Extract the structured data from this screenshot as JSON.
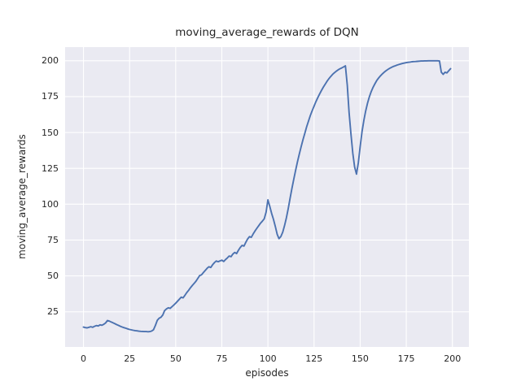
{
  "chart_data": {
    "type": "line",
    "title": "moving_average_rewards of DQN",
    "xlabel": "episodes",
    "ylabel": "moving_average_rewards",
    "xlim": [
      -9.95,
      208.95
    ],
    "ylim": [
      0.5,
      209.5
    ],
    "xticks": [
      0,
      25,
      50,
      75,
      100,
      125,
      150,
      175,
      200
    ],
    "yticks": [
      25,
      50,
      75,
      100,
      125,
      150,
      175,
      200
    ],
    "grid": true,
    "legend_position": "none",
    "style": {
      "line_color": "#4c72b0",
      "plot_bg": "#eaeaf2",
      "grid_color": "#ffffff",
      "text_color": "#262626",
      "fig_bg": "#ffffff"
    },
    "series": [
      {
        "name": "moving_average_rewards",
        "x_start": 0,
        "x_step": 1,
        "y": [
          14.3,
          14.0,
          13.8,
          14.2,
          14.6,
          14.2,
          14.9,
          15.4,
          15.1,
          15.9,
          15.6,
          16.3,
          17.2,
          18.9,
          18.5,
          17.9,
          17.3,
          16.7,
          16.1,
          15.5,
          14.9,
          14.4,
          13.9,
          13.5,
          13.1,
          12.7,
          12.4,
          12.1,
          11.9,
          11.7,
          11.5,
          11.4,
          11.3,
          11.2,
          11.2,
          11.1,
          11.2,
          11.6,
          12.5,
          15.5,
          19.0,
          20.5,
          21.2,
          22.8,
          25.8,
          27.0,
          27.8,
          27.4,
          28.6,
          29.8,
          31.0,
          32.4,
          33.8,
          35.2,
          34.7,
          36.5,
          38.4,
          40.0,
          41.8,
          43.3,
          44.8,
          46.4,
          48.3,
          50.3,
          50.8,
          52.3,
          53.8,
          55.3,
          56.4,
          55.9,
          57.8,
          59.3,
          60.4,
          59.9,
          60.5,
          61.0,
          60.1,
          61.4,
          62.6,
          63.9,
          63.4,
          65.3,
          66.4,
          65.6,
          67.9,
          69.8,
          71.3,
          70.8,
          73.4,
          75.8,
          77.4,
          76.9,
          79.3,
          81.4,
          83.2,
          85.0,
          86.8,
          88.2,
          89.8,
          94.5,
          103.0,
          98.5,
          93.5,
          89.5,
          84.5,
          79.0,
          76.0,
          77.5,
          80.5,
          85.0,
          90.5,
          97.0,
          104.0,
          111.0,
          117.5,
          123.5,
          129.5,
          135.0,
          140.0,
          145.0,
          149.5,
          154.0,
          158.0,
          161.8,
          165.2,
          168.4,
          171.4,
          174.2,
          176.8,
          179.2,
          181.5,
          183.6,
          185.6,
          187.4,
          189.0,
          190.4,
          191.6,
          192.7,
          193.6,
          194.4,
          195.0,
          195.7,
          196.5,
          183.0,
          164.0,
          149.0,
          135.5,
          126.0,
          121.0,
          129.0,
          140.0,
          150.5,
          158.5,
          165.0,
          170.5,
          175.0,
          178.5,
          181.5,
          184.0,
          186.2,
          188.0,
          189.5,
          190.8,
          192.0,
          193.0,
          193.9,
          194.7,
          195.4,
          196.0,
          196.5,
          197.0,
          197.4,
          197.8,
          198.1,
          198.4,
          198.7,
          198.9,
          199.1,
          199.3,
          199.4,
          199.5,
          199.6,
          199.7,
          199.8,
          199.8,
          199.9,
          199.9,
          200.0,
          200.0,
          200.0,
          200.0,
          200.0,
          200.0,
          199.8,
          192.0,
          190.5,
          192.0,
          191.5,
          193.0,
          194.5
        ]
      }
    ]
  }
}
